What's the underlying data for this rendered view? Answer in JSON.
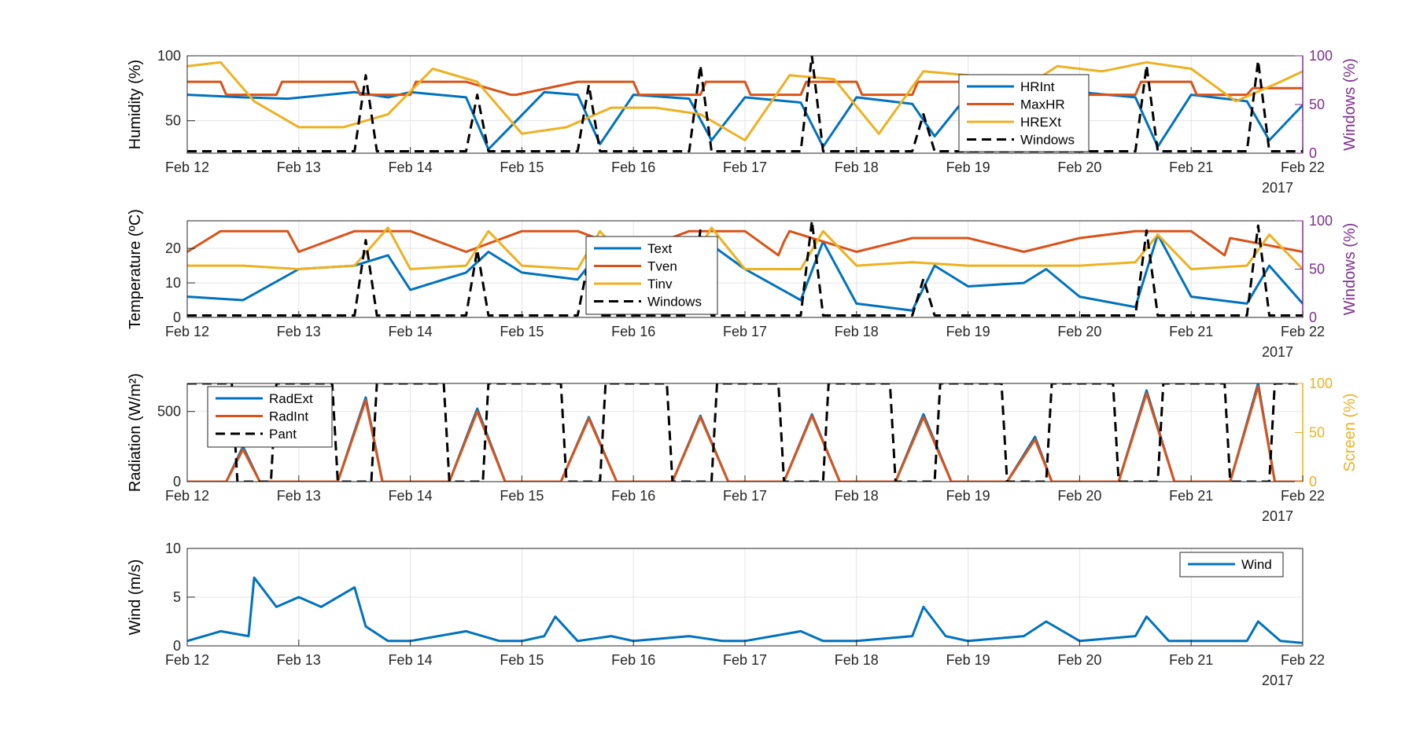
{
  "figure": {
    "year_label": "2017",
    "x_tick_labels": [
      "Feb 12",
      "Feb 13",
      "Feb 14",
      "Feb 15",
      "Feb 16",
      "Feb 17",
      "Feb 18",
      "Feb 19",
      "Feb 20",
      "Feb 21",
      "Feb 22"
    ],
    "colors": {
      "blue": "#0072BD",
      "orange": "#D95319",
      "yellow": "#EDB120",
      "black": "#000000",
      "purple": "#7E2F8E"
    }
  },
  "chart_data": [
    {
      "type": "line",
      "ylabel": "Humidity (%)",
      "ylabel_right": "Windows (%)",
      "xlim": [
        0,
        10
      ],
      "ylim": [
        25,
        100
      ],
      "ylim_right": [
        0,
        100
      ],
      "yticks": [
        50,
        100
      ],
      "yticks_right": [
        0,
        50,
        100
      ],
      "grid": true,
      "legend_position": "top-right",
      "series": [
        {
          "name": "HRInt",
          "axis": "left",
          "color": "#0072BD",
          "style": "solid",
          "x_days": [
            0,
            0.5,
            0.9,
            1.5,
            1.8,
            2,
            2.5,
            2.7,
            3.2,
            3.5,
            3.7,
            4,
            4.5,
            4.7,
            5,
            5.5,
            5.7,
            6,
            6.5,
            6.7,
            7,
            7.5,
            7.7,
            8,
            8.5,
            8.7,
            9,
            9.5,
            9.7,
            10
          ],
          "values": [
            70,
            68,
            67,
            72,
            68,
            72,
            68,
            28,
            72,
            70,
            32,
            70,
            67,
            35,
            68,
            64,
            30,
            68,
            63,
            38,
            70,
            60,
            40,
            72,
            68,
            30,
            70,
            65,
            35,
            62
          ]
        },
        {
          "name": "MaxHR",
          "axis": "left",
          "color": "#D95319",
          "style": "solid",
          "x_days": [
            0,
            0.3,
            0.35,
            0.8,
            0.85,
            1.5,
            1.55,
            2,
            2.05,
            2.5,
            2.9,
            2.95,
            3.5,
            4,
            4.05,
            4.6,
            4.65,
            5,
            5.05,
            5.5,
            5.55,
            6,
            6.05,
            6.5,
            6.55,
            7,
            7.05,
            7.5,
            7.55,
            8,
            8.05,
            8.5,
            8.55,
            9,
            9.05,
            9.5,
            9.55,
            10
          ],
          "values": [
            80,
            80,
            70,
            70,
            80,
            80,
            70,
            70,
            80,
            80,
            70,
            70,
            80,
            80,
            70,
            70,
            80,
            80,
            70,
            70,
            80,
            80,
            70,
            70,
            80,
            80,
            70,
            70,
            80,
            80,
            70,
            70,
            80,
            80,
            70,
            70,
            75,
            75
          ]
        },
        {
          "name": "HREXt",
          "axis": "left",
          "color": "#EDB120",
          "style": "solid",
          "x_days": [
            0,
            0.3,
            0.6,
            1,
            1.4,
            1.8,
            2.2,
            2.6,
            3,
            3.4,
            3.8,
            4.2,
            4.6,
            5,
            5.4,
            5.8,
            6.2,
            6.6,
            7,
            7.4,
            7.8,
            8.2,
            8.6,
            9,
            9.4,
            9.8,
            10
          ],
          "values": [
            92,
            95,
            65,
            45,
            45,
            55,
            90,
            80,
            40,
            45,
            60,
            60,
            55,
            35,
            85,
            82,
            40,
            88,
            85,
            70,
            92,
            88,
            95,
            90,
            65,
            80,
            88
          ]
        },
        {
          "name": "Windows",
          "axis": "right",
          "color": "#000000",
          "style": "dashed",
          "x_days": [
            0,
            1.5,
            1.6,
            1.7,
            2,
            2.5,
            2.6,
            2.7,
            3.2,
            3.5,
            3.6,
            3.7,
            4.5,
            4.6,
            4.7,
            5.3,
            5.5,
            5.6,
            5.7,
            6,
            6.5,
            6.6,
            6.7,
            7.5,
            8,
            8.5,
            8.6,
            8.7,
            9.5,
            9.6,
            9.7,
            10
          ],
          "values": [
            2,
            2,
            80,
            2,
            2,
            2,
            60,
            2,
            2,
            2,
            70,
            2,
            2,
            90,
            2,
            2,
            2,
            100,
            2,
            2,
            2,
            40,
            2,
            2,
            2,
            2,
            90,
            2,
            2,
            95,
            2,
            2
          ]
        }
      ]
    },
    {
      "type": "line",
      "ylabel": "Temperature (ºC)",
      "ylabel_right": "Windows (%)",
      "xlim": [
        0,
        10
      ],
      "ylim": [
        0,
        28
      ],
      "ylim_right": [
        0,
        100
      ],
      "yticks": [
        0,
        10,
        20
      ],
      "yticks_right": [
        0,
        50,
        100
      ],
      "grid": true,
      "legend_position": "top-center",
      "series": [
        {
          "name": "Text",
          "axis": "left",
          "color": "#0072BD",
          "style": "solid",
          "x_days": [
            0,
            0.5,
            1,
            1.5,
            1.8,
            2,
            2.5,
            2.7,
            3,
            3.5,
            3.7,
            4,
            4.5,
            4.7,
            5,
            5.5,
            5.7,
            6,
            6.5,
            6.7,
            7,
            7.5,
            7.7,
            8,
            8.5,
            8.7,
            9,
            9.5,
            9.7,
            10
          ],
          "values": [
            6,
            5,
            14,
            15,
            18,
            8,
            13,
            19,
            13,
            11,
            19,
            14,
            12,
            21,
            14,
            5,
            22,
            4,
            2,
            15,
            9,
            10,
            14,
            6,
            3,
            24,
            6,
            4,
            15,
            4
          ]
        },
        {
          "name": "Tven",
          "axis": "left",
          "color": "#D95319",
          "style": "solid",
          "x_days": [
            0,
            0.3,
            0.9,
            1.0,
            1.5,
            2,
            2.5,
            3,
            3.5,
            4,
            4.5,
            5,
            5.3,
            5.35,
            5.4,
            6,
            6.5,
            7,
            7.5,
            8,
            8.5,
            9,
            9.3,
            9.35,
            10
          ],
          "values": [
            19,
            25,
            25,
            19,
            25,
            25,
            19,
            25,
            25,
            19,
            25,
            25,
            18,
            22,
            25,
            19,
            23,
            23,
            19,
            23,
            25,
            25,
            18,
            23,
            19
          ]
        },
        {
          "name": "Tinv",
          "axis": "left",
          "color": "#EDB120",
          "style": "solid",
          "x_days": [
            0,
            0.5,
            1,
            1.5,
            1.8,
            2,
            2.5,
            2.7,
            3,
            3.5,
            3.7,
            4,
            4.5,
            4.7,
            5,
            5.5,
            5.7,
            6,
            6.5,
            7,
            7.5,
            8,
            8.5,
            8.7,
            9,
            9.5,
            9.7,
            10
          ],
          "values": [
            15,
            15,
            14,
            15,
            26,
            14,
            15,
            25,
            15,
            14,
            25,
            14,
            15,
            26,
            14,
            14,
            25,
            15,
            16,
            15,
            15,
            15,
            16,
            24,
            14,
            15,
            24,
            14
          ]
        },
        {
          "name": "Windows",
          "axis": "right",
          "color": "#000000",
          "style": "dashed",
          "x_days": [
            0,
            1.5,
            1.6,
            1.7,
            2,
            2.5,
            2.6,
            2.7,
            3.5,
            3.6,
            3.7,
            4.5,
            4.6,
            4.7,
            5.5,
            5.6,
            5.7,
            6.5,
            6.6,
            6.7,
            8.5,
            8.6,
            8.7,
            9.5,
            9.6,
            9.7,
            10
          ],
          "values": [
            2,
            2,
            80,
            2,
            2,
            2,
            70,
            2,
            2,
            60,
            2,
            2,
            90,
            2,
            2,
            100,
            2,
            2,
            40,
            2,
            2,
            90,
            2,
            2,
            95,
            2,
            2
          ]
        }
      ]
    },
    {
      "type": "line",
      "ylabel": "Radiation (W/m²)",
      "ylabel_right": "Screen (%)",
      "xlim": [
        0,
        10
      ],
      "ylim": [
        0,
        700
      ],
      "ylim_right": [
        0,
        100
      ],
      "yticks": [
        0,
        500
      ],
      "yticks_right": [
        0,
        50,
        100
      ],
      "grid": true,
      "legend_position": "top-left",
      "series": [
        {
          "name": "RadExt",
          "axis": "left",
          "color": "#0072BD",
          "style": "solid",
          "x_days": [
            0,
            0.35,
            0.5,
            0.65,
            1.35,
            1.6,
            1.75,
            2.35,
            2.6,
            2.85,
            3.35,
            3.6,
            3.85,
            4.35,
            4.6,
            4.85,
            5.35,
            5.6,
            5.85,
            6.35,
            6.6,
            6.85,
            7.35,
            7.6,
            7.75,
            8.35,
            8.6,
            8.85,
            9.35,
            9.6,
            9.75,
            10
          ],
          "values": [
            0,
            0,
            250,
            0,
            0,
            600,
            0,
            0,
            520,
            0,
            0,
            460,
            0,
            0,
            470,
            0,
            0,
            480,
            0,
            0,
            480,
            0,
            0,
            320,
            0,
            0,
            650,
            0,
            0,
            700,
            0,
            0
          ]
        },
        {
          "name": "RadInt",
          "axis": "left",
          "color": "#D95319",
          "style": "solid",
          "x_days": [
            0,
            0.35,
            0.5,
            0.65,
            1.35,
            1.6,
            1.75,
            2.35,
            2.6,
            2.85,
            3.35,
            3.6,
            3.85,
            4.35,
            4.6,
            4.85,
            5.35,
            5.6,
            5.85,
            6.35,
            6.6,
            6.85,
            7.35,
            7.6,
            7.75,
            8.35,
            8.6,
            8.85,
            9.35,
            9.6,
            9.75,
            10
          ],
          "values": [
            0,
            0,
            230,
            0,
            0,
            580,
            0,
            0,
            500,
            0,
            0,
            450,
            0,
            0,
            460,
            0,
            0,
            470,
            0,
            0,
            460,
            0,
            0,
            300,
            0,
            0,
            630,
            0,
            0,
            680,
            0,
            0
          ]
        },
        {
          "name": "Pant",
          "axis": "right",
          "color": "#000000",
          "style": "dashed",
          "x_days": [
            0,
            0.4,
            0.45,
            0.75,
            0.8,
            1.3,
            1.35,
            1.65,
            1.7,
            2.3,
            2.35,
            2.65,
            2.7,
            3.35,
            3.4,
            3.7,
            3.75,
            4.3,
            4.35,
            4.7,
            4.75,
            5.3,
            5.35,
            5.7,
            5.75,
            6.3,
            6.35,
            6.7,
            6.75,
            7.3,
            7.35,
            7.7,
            7.75,
            8.3,
            8.35,
            8.7,
            8.75,
            9.3,
            9.35,
            9.7,
            9.75,
            10
          ],
          "values": [
            100,
            100,
            0,
            0,
            100,
            100,
            0,
            0,
            100,
            100,
            0,
            0,
            100,
            100,
            0,
            0,
            100,
            100,
            0,
            0,
            100,
            100,
            0,
            0,
            100,
            100,
            0,
            0,
            100,
            100,
            0,
            0,
            100,
            100,
            0,
            0,
            100,
            100,
            0,
            0,
            100,
            100
          ]
        }
      ]
    },
    {
      "type": "line",
      "ylabel": "Wind (m/s)",
      "xlim": [
        0,
        10
      ],
      "ylim": [
        0,
        10
      ],
      "yticks": [
        0,
        5,
        10
      ],
      "grid": true,
      "legend_position": "top-right",
      "series": [
        {
          "name": "Wind",
          "axis": "left",
          "color": "#0072BD",
          "style": "solid",
          "x_days": [
            0,
            0.3,
            0.55,
            0.6,
            0.8,
            1,
            1.2,
            1.5,
            1.6,
            1.8,
            2,
            2.5,
            2.8,
            3,
            3.2,
            3.3,
            3.5,
            3.8,
            4,
            4.5,
            4.8,
            5,
            5.5,
            5.7,
            6,
            6.5,
            6.6,
            6.8,
            7,
            7.5,
            7.7,
            8,
            8.5,
            8.6,
            8.8,
            9,
            9.5,
            9.6,
            9.8,
            10
          ],
          "values": [
            0.5,
            1.5,
            1,
            7,
            4,
            5,
            4,
            6,
            2,
            0.5,
            0.5,
            1.5,
            0.5,
            0.5,
            1,
            3,
            0.5,
            1,
            0.5,
            1,
            0.5,
            0.5,
            1.5,
            0.5,
            0.5,
            1,
            4,
            1,
            0.5,
            1,
            2.5,
            0.5,
            1,
            3,
            0.5,
            0.5,
            0.5,
            2.5,
            0.5,
            0.3
          ]
        }
      ]
    }
  ]
}
